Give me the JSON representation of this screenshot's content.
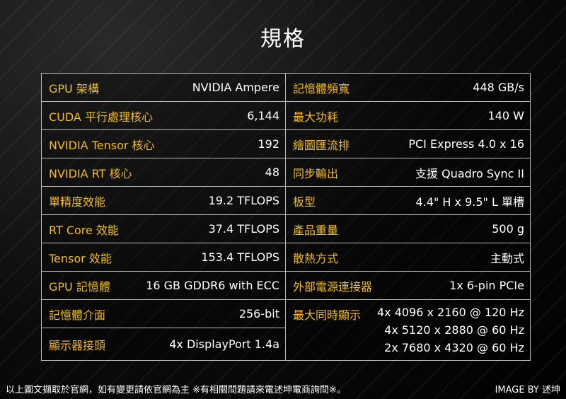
{
  "title": "規格",
  "left_specs": [
    {
      "label": "GPU 架構",
      "value": "NVIDIA Ampere"
    },
    {
      "label": "CUDA 平行處理核心",
      "value": "6,144"
    },
    {
      "label": "NVIDIA Tensor 核心",
      "value": "192"
    },
    {
      "label": "NVIDIA RT 核心",
      "value": "48"
    },
    {
      "label": "單精度效能",
      "value": "19.2 TFLOPS"
    },
    {
      "label": "RT Core 效能",
      "value": "37.4 TFLOPS"
    },
    {
      "label": "Tensor 效能",
      "value": "153.4 TFLOPS"
    },
    {
      "label": "GPU 記憶體",
      "value": "16 GB GDDR6 with ECC"
    },
    {
      "label": "記憶體介面",
      "value": "256-bit"
    },
    {
      "label": "顯示器接頭",
      "value": "4x DisplayPort 1.4a"
    }
  ],
  "right_specs": [
    {
      "label": "記憶體頻寬",
      "value": "448 GB/s"
    },
    {
      "label": "最大功耗",
      "value": "140 W"
    },
    {
      "label": "繪圖匯流排",
      "value": "PCI Express 4.0 x 16"
    },
    {
      "label": "同步輸出",
      "value": "支援 Quadro Sync II"
    },
    {
      "label": "板型",
      "value": "4.4\" H x 9.5\" L 單槽"
    },
    {
      "label": "產品重量",
      "value": "500 g"
    },
    {
      "label": "散熱方式",
      "value": "主動式"
    },
    {
      "label": "外部電源連接器",
      "value": "1x 6-pin PCIe"
    }
  ],
  "max_resolution": {
    "label": "最大同時顯示",
    "values": [
      "4x 4096 x 2160 @ 120 Hz",
      "4x 5120 x 2880 @ 60 Hz",
      "2x 7680 x 4320 @ 60 Hz"
    ]
  },
  "footer": {
    "note": "以上圖文擷取於官網，如有變更請依官網為主 ※有相關問題請來電述坤電商詢問※。",
    "credit": "IMAGE BY 述坤"
  },
  "colors": {
    "label": "#f2be1e",
    "value": "#ffffff",
    "background": "#000000",
    "border": "#bbbbbb"
  }
}
